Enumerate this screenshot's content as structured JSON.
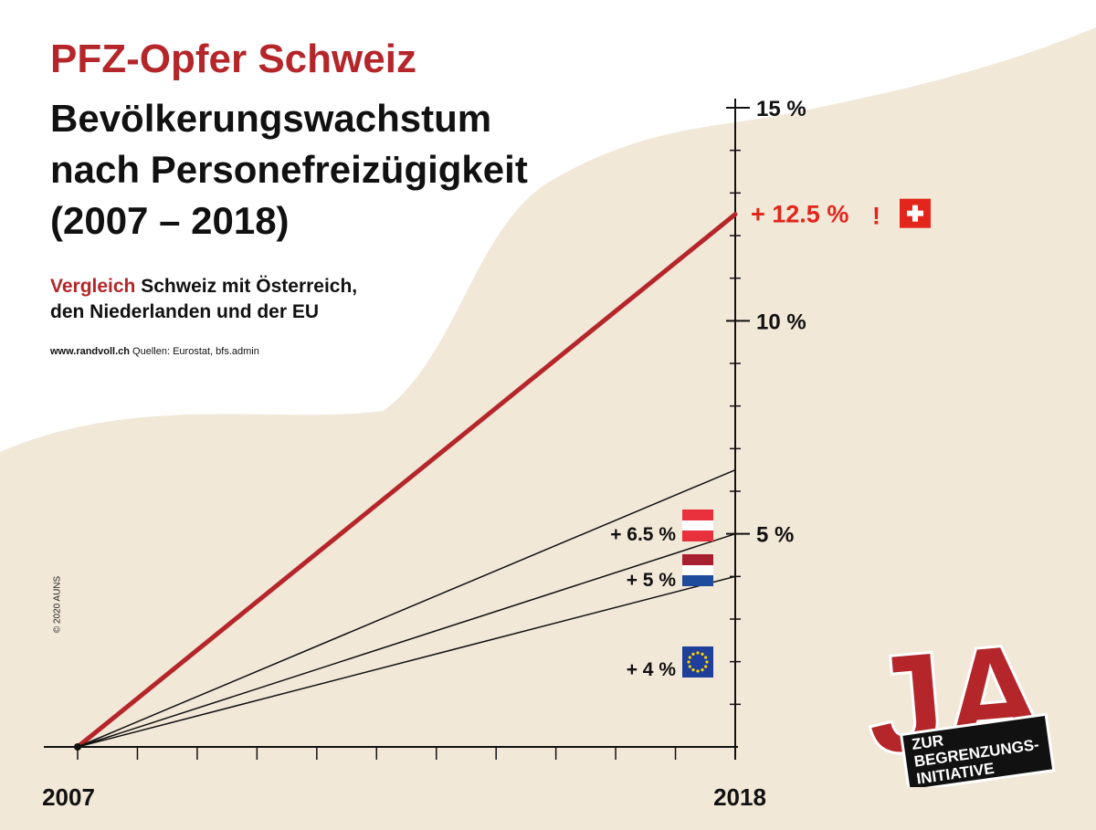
{
  "header": {
    "title": "PFZ-Opfer Schweiz",
    "title_line1": "Bevölkerungswachstum",
    "title_line2": "nach Personefreizügigkeit",
    "title_line3": "(2007 – 2018)",
    "subtitle_highlight": "Vergleich",
    "subtitle_line1": " Schweiz mit Österreich,",
    "subtitle_line2": "den Niederlanden und der EU",
    "source_url": "www.randvoll.ch",
    "source_text": " Quellen: Eurostat, bfs.admin",
    "copyright": "© 2020 AUNS"
  },
  "logo": {
    "big": "JA",
    "line1": "ZUR",
    "line2": "BEGRENZUNGS-",
    "line3": "INITIATIVE"
  },
  "colors": {
    "accent_red": "#b5262a",
    "label_red": "#e3261c",
    "beige": "#f2e8d8"
  },
  "chart_data": {
    "type": "line",
    "title": "Bevölkerungswachstum nach Personefreizügigkeit (2007 – 2018)",
    "x": [
      2007,
      2018
    ],
    "x_labels": [
      "2007",
      "2018"
    ],
    "ylim": [
      0,
      15
    ],
    "y_ticks": [
      "5 %",
      "10 %",
      "15 %"
    ],
    "series": [
      {
        "name": "Schweiz",
        "values": [
          0,
          12.5
        ],
        "label": "+ 12.5 %",
        "exclaim": "!",
        "flag": "swiss-flag"
      },
      {
        "name": "Österreich",
        "values": [
          0,
          6.5
        ],
        "label": "+ 6.5 %",
        "flag": "austria-flag"
      },
      {
        "name": "Niederlande",
        "values": [
          0,
          5
        ],
        "label": "+ 5 %",
        "flag": "netherlands-flag"
      },
      {
        "name": "EU",
        "values": [
          0,
          4
        ],
        "label": "+ 4 %",
        "flag": "eu-flag"
      }
    ]
  }
}
